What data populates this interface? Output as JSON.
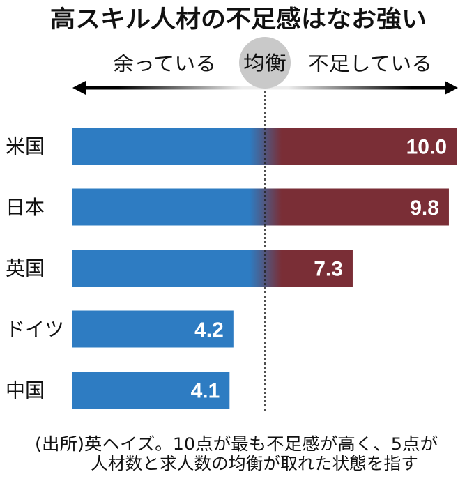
{
  "chart_data": {
    "type": "bar",
    "orientation": "horizontal",
    "title": "高スキル人材の不足感はなお強い",
    "categories": [
      "米国",
      "日本",
      "英国",
      "ドイツ",
      "中国"
    ],
    "values": [
      10.0,
      9.8,
      7.3,
      4.2,
      4.1
    ],
    "value_labels": [
      "10.0",
      "9.8",
      "7.3",
      "4.2",
      "4.1"
    ],
    "xlim": [
      0,
      10
    ],
    "balance_value": 5,
    "scale": {
      "left_label": "余っている",
      "center_label": "均衡",
      "right_label": "不足している"
    },
    "source_note": [
      "(出所)英ヘイズ。10点が最も不足感が高く、5点が",
      "人材数と求人数の均衡が取れた状態を指す"
    ]
  },
  "colors": {
    "surplus": "#2e7cc2",
    "shortage": "#7a2e36",
    "balance_circle": "#c9c9c9",
    "arrow_end": "#000000",
    "arrow_center": "#ececec"
  }
}
